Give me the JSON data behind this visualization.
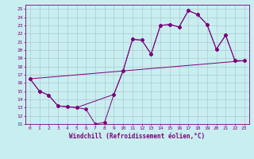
{
  "xlabel": "Windchill (Refroidissement éolien,°C)",
  "xlim": [
    -0.5,
    23.5
  ],
  "ylim": [
    11,
    25.5
  ],
  "xticks": [
    0,
    1,
    2,
    3,
    4,
    5,
    6,
    7,
    8,
    9,
    10,
    11,
    12,
    13,
    14,
    15,
    16,
    17,
    18,
    19,
    20,
    21,
    22,
    23
  ],
  "yticks": [
    11,
    12,
    13,
    14,
    15,
    16,
    17,
    18,
    19,
    20,
    21,
    22,
    23,
    24,
    25
  ],
  "line_color": "#7b007b",
  "background_color": "#c8eef0",
  "grid_color": "#b0c8d0",
  "line1_x": [
    0,
    1,
    2,
    3,
    4,
    5,
    6,
    7,
    8,
    9,
    10,
    11,
    12,
    13,
    14,
    15,
    16,
    17,
    18,
    19,
    20,
    21,
    22,
    23
  ],
  "line1_y": [
    16.5,
    15.0,
    14.5,
    13.2,
    13.1,
    13.0,
    12.8,
    11.0,
    11.2,
    14.6,
    17.5,
    21.3,
    21.2,
    19.5,
    23.0,
    23.1,
    22.8,
    24.8,
    24.3,
    23.1,
    20.1,
    21.8,
    18.7,
    18.7
  ],
  "line2_x": [
    0,
    1,
    2,
    3,
    4,
    5,
    9,
    10,
    11,
    12,
    13,
    14,
    15,
    16,
    17,
    18,
    19,
    20,
    21,
    22,
    23
  ],
  "line2_y": [
    16.5,
    15.0,
    14.5,
    13.2,
    13.1,
    13.0,
    14.6,
    17.5,
    21.3,
    21.2,
    19.5,
    23.0,
    23.1,
    22.8,
    24.8,
    24.3,
    23.1,
    20.1,
    21.8,
    18.7,
    18.7
  ],
  "line3_x": [
    0,
    23
  ],
  "line3_y": [
    16.5,
    18.7
  ]
}
